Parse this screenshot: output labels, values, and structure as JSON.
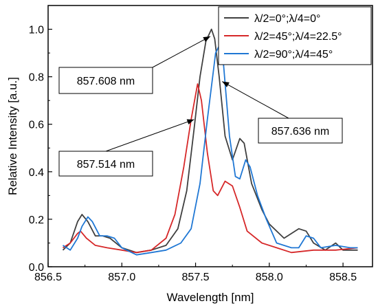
{
  "chart_data": {
    "type": "line",
    "xlabel": "Wavelength [nm]",
    "ylabel": "Relative Intensity [a.u.]",
    "xlim": [
      856.5,
      858.7
    ],
    "ylim": [
      0.0,
      1.1
    ],
    "x_ticks": [
      856.5,
      857.0,
      857.5,
      858.0,
      858.5
    ],
    "x_tick_labels": [
      "856.5",
      "857.0",
      "857.5",
      "858.0",
      "858.5"
    ],
    "y_ticks": [
      0.0,
      0.2,
      0.4,
      0.6,
      0.8,
      1.0
    ],
    "y_tick_labels": [
      "0.0",
      "0.2",
      "0.4",
      "0.6",
      "0.8",
      "1.0"
    ],
    "legend_placement": "top-right",
    "series": [
      {
        "name": "λ/2=0°;λ/4=0°",
        "color": "#3f3f3f",
        "points": [
          [
            856.6,
            0.07
          ],
          [
            856.65,
            0.1
          ],
          [
            856.7,
            0.19
          ],
          [
            856.73,
            0.22
          ],
          [
            856.77,
            0.19
          ],
          [
            856.82,
            0.13
          ],
          [
            856.87,
            0.13
          ],
          [
            856.92,
            0.12
          ],
          [
            857.0,
            0.08
          ],
          [
            857.1,
            0.06
          ],
          [
            857.2,
            0.07
          ],
          [
            857.3,
            0.09
          ],
          [
            857.38,
            0.16
          ],
          [
            857.44,
            0.32
          ],
          [
            857.49,
            0.58
          ],
          [
            857.53,
            0.8
          ],
          [
            857.57,
            0.95
          ],
          [
            857.608,
            1.0
          ],
          [
            857.63,
            0.96
          ],
          [
            857.66,
            0.8
          ],
          [
            857.7,
            0.55
          ],
          [
            857.75,
            0.45
          ],
          [
            857.8,
            0.54
          ],
          [
            857.83,
            0.52
          ],
          [
            857.88,
            0.35
          ],
          [
            857.95,
            0.24
          ],
          [
            858.0,
            0.18
          ],
          [
            858.1,
            0.12
          ],
          [
            858.2,
            0.16
          ],
          [
            858.25,
            0.15
          ],
          [
            858.3,
            0.1
          ],
          [
            858.38,
            0.07
          ],
          [
            858.45,
            0.1
          ],
          [
            858.5,
            0.07
          ],
          [
            858.6,
            0.07
          ]
        ]
      },
      {
        "name": "λ/2=45°;λ/4=22.5°",
        "color": "#d62728",
        "points": [
          [
            856.6,
            0.08
          ],
          [
            856.65,
            0.1
          ],
          [
            856.7,
            0.14
          ],
          [
            856.72,
            0.15
          ],
          [
            856.76,
            0.12
          ],
          [
            856.82,
            0.09
          ],
          [
            856.9,
            0.08
          ],
          [
            857.0,
            0.07
          ],
          [
            857.1,
            0.06
          ],
          [
            857.2,
            0.07
          ],
          [
            857.3,
            0.12
          ],
          [
            857.36,
            0.22
          ],
          [
            857.42,
            0.42
          ],
          [
            857.47,
            0.62
          ],
          [
            857.514,
            0.77
          ],
          [
            857.54,
            0.7
          ],
          [
            857.58,
            0.48
          ],
          [
            857.62,
            0.32
          ],
          [
            857.65,
            0.3
          ],
          [
            857.7,
            0.36
          ],
          [
            857.75,
            0.34
          ],
          [
            857.8,
            0.25
          ],
          [
            857.85,
            0.15
          ],
          [
            857.95,
            0.1
          ],
          [
            858.05,
            0.08
          ],
          [
            858.15,
            0.06
          ],
          [
            858.3,
            0.07
          ],
          [
            858.45,
            0.07
          ],
          [
            858.6,
            0.08
          ]
        ]
      },
      {
        "name": "λ/2=90°;λ/4=45°",
        "color": "#1f77d4",
        "points": [
          [
            856.6,
            0.09
          ],
          [
            856.65,
            0.07
          ],
          [
            856.7,
            0.12
          ],
          [
            856.73,
            0.17
          ],
          [
            856.77,
            0.21
          ],
          [
            856.8,
            0.19
          ],
          [
            856.85,
            0.13
          ],
          [
            856.9,
            0.13
          ],
          [
            856.95,
            0.12
          ],
          [
            857.0,
            0.08
          ],
          [
            857.1,
            0.05
          ],
          [
            857.2,
            0.06
          ],
          [
            857.3,
            0.07
          ],
          [
            857.4,
            0.1
          ],
          [
            857.47,
            0.16
          ],
          [
            857.53,
            0.35
          ],
          [
            857.58,
            0.62
          ],
          [
            857.62,
            0.82
          ],
          [
            857.636,
            0.9
          ],
          [
            857.66,
            0.93
          ],
          [
            857.69,
            0.85
          ],
          [
            857.73,
            0.55
          ],
          [
            857.77,
            0.38
          ],
          [
            857.8,
            0.37
          ],
          [
            857.84,
            0.45
          ],
          [
            857.87,
            0.42
          ],
          [
            857.92,
            0.3
          ],
          [
            857.98,
            0.2
          ],
          [
            858.05,
            0.1
          ],
          [
            858.15,
            0.08
          ],
          [
            858.2,
            0.08
          ],
          [
            858.25,
            0.13
          ],
          [
            858.3,
            0.12
          ],
          [
            858.35,
            0.08
          ],
          [
            858.45,
            0.09
          ],
          [
            858.55,
            0.08
          ],
          [
            858.6,
            0.08
          ]
        ]
      }
    ],
    "annotations": [
      {
        "text": "857.608 nm",
        "target": [
          857.6,
          0.97
        ]
      },
      {
        "text": "857.636 nm",
        "target": [
          857.68,
          0.78
        ]
      },
      {
        "text": "857.514 nm",
        "target": [
          857.49,
          0.62
        ]
      }
    ]
  }
}
